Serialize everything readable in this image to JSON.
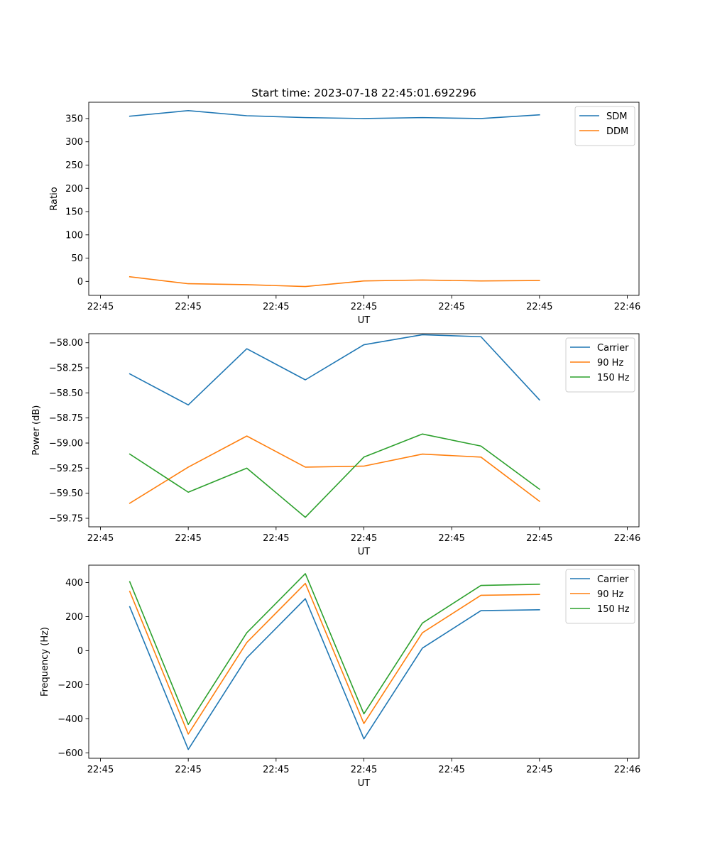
{
  "chart_data": [
    {
      "type": "line",
      "title": "Start time: 2023-07-18 22:45:01.692296",
      "xlabel": "UT",
      "ylabel": "Ratio",
      "x_tick_labels": [
        "22:45",
        "22:45",
        "22:45",
        "22:45",
        "22:45",
        "22:45",
        "22:46"
      ],
      "xlim": [
        -0.2,
        9.2
      ],
      "ylim": [
        -30,
        385
      ],
      "y_ticks": [
        0,
        50,
        100,
        150,
        200,
        250,
        300,
        350
      ],
      "y_tick_labels": [
        "0",
        "50",
        "100",
        "150",
        "200",
        "250",
        "300",
        "350"
      ],
      "x": [
        0.5,
        1.5,
        2.5,
        3.5,
        4.5,
        5.5,
        6.5,
        7.5
      ],
      "legend_position": "top-right",
      "series": [
        {
          "name": "SDM",
          "color": "#1f77b4",
          "values": [
            355,
            367,
            356,
            352,
            350,
            352,
            350,
            358
          ]
        },
        {
          "name": "DDM",
          "color": "#ff7f0e",
          "values": [
            10,
            -5,
            -7,
            -11,
            1,
            3,
            1,
            2
          ]
        }
      ]
    },
    {
      "type": "line",
      "title": "",
      "xlabel": "UT",
      "ylabel": "Power (dB)",
      "x_tick_labels": [
        "22:45",
        "22:45",
        "22:45",
        "22:45",
        "22:45",
        "22:45",
        "22:46"
      ],
      "xlim": [
        -0.2,
        9.2
      ],
      "ylim": [
        -59.835,
        -57.91
      ],
      "y_ticks": [
        -59.75,
        -59.5,
        -59.25,
        -59.0,
        -58.75,
        -58.5,
        -58.25,
        -58.0
      ],
      "y_tick_labels": [
        "−59.75",
        "−59.50",
        "−59.25",
        "−59.00",
        "−58.75",
        "−58.50",
        "−58.25",
        "−58.00"
      ],
      "x": [
        0.5,
        1.5,
        2.5,
        3.5,
        4.5,
        5.5,
        6.5,
        7.5
      ],
      "legend_position": "top-right",
      "series": [
        {
          "name": "Carrier",
          "color": "#1f77b4",
          "values": [
            -58.31,
            -58.62,
            -58.06,
            -58.37,
            -58.02,
            -57.92,
            -57.94,
            -58.57
          ]
        },
        {
          "name": "90 Hz",
          "color": "#ff7f0e",
          "values": [
            -59.6,
            -59.24,
            -58.93,
            -59.24,
            -59.23,
            -59.11,
            -59.14,
            -59.58
          ]
        },
        {
          "name": "150 Hz",
          "color": "#2ca02c",
          "values": [
            -59.11,
            -59.49,
            -59.25,
            -59.74,
            -59.14,
            -58.91,
            -59.03,
            -59.46
          ]
        }
      ]
    },
    {
      "type": "line",
      "title": "",
      "xlabel": "UT",
      "ylabel": "Frequency (Hz)",
      "x_tick_labels": [
        "22:45",
        "22:45",
        "22:45",
        "22:45",
        "22:45",
        "22:45",
        "22:46"
      ],
      "xlim": [
        -0.2,
        9.2
      ],
      "ylim": [
        -632,
        502
      ],
      "y_ticks": [
        -600,
        -400,
        -200,
        0,
        200,
        400
      ],
      "y_tick_labels": [
        "−600",
        "−400",
        "−200",
        "0",
        "200",
        "400"
      ],
      "x": [
        0.5,
        1.5,
        2.5,
        3.5,
        4.5,
        5.5,
        6.5,
        7.5
      ],
      "legend_position": "top-right",
      "series": [
        {
          "name": "Carrier",
          "color": "#1f77b4",
          "values": [
            258,
            -580,
            -42,
            305,
            -518,
            15,
            235,
            240
          ]
        },
        {
          "name": "90 Hz",
          "color": "#ff7f0e",
          "values": [
            348,
            -490,
            48,
            395,
            -428,
            105,
            325,
            330
          ]
        },
        {
          "name": "150 Hz",
          "color": "#2ca02c",
          "values": [
            405,
            -433,
            105,
            452,
            -371,
            162,
            383,
            390
          ]
        }
      ]
    }
  ]
}
